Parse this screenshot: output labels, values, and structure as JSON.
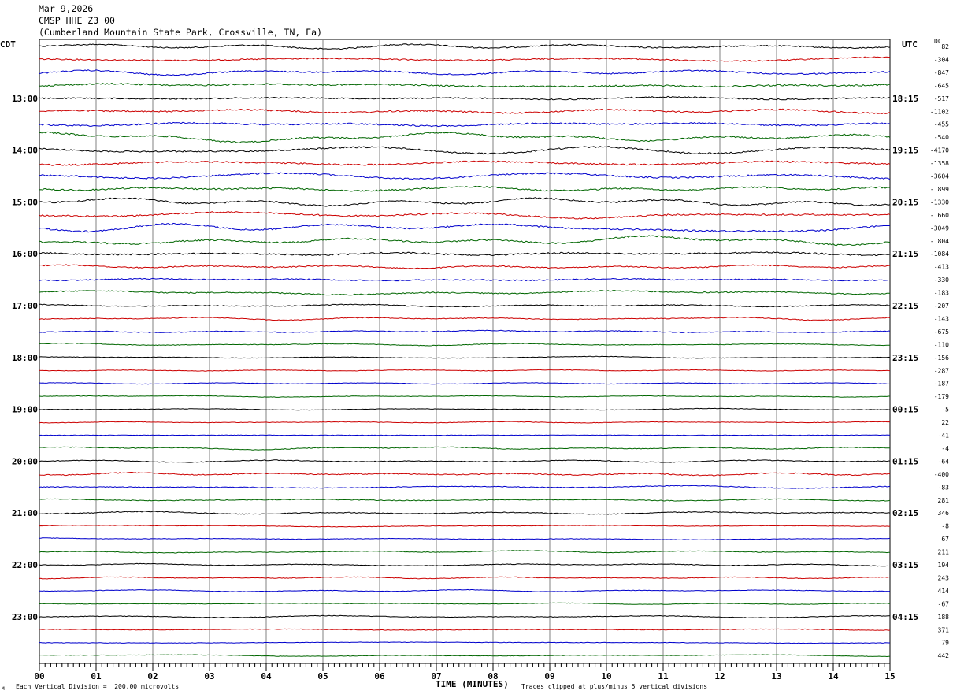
{
  "header": {
    "date": "Mar 9,2026",
    "station": "CMSP HHE Z3 00",
    "location": "(Cumberland Mountain State Park, Crossville, TN, Ea)"
  },
  "left_axis_label": "CDT",
  "right_axis_label": "UTC",
  "dc_label": "DC",
  "footer": {
    "scale_note": "Each Vertical Division =  200.00 microvolts",
    "clip_note": "Traces clipped at plus/minus 5 vertical divisions",
    "corner_mark": "M"
  },
  "colors": {
    "trace_cycle": [
      "#000000",
      "#cc0000",
      "#0000cc",
      "#006600"
    ],
    "grid": "#808080"
  },
  "chart_data": {
    "type": "line",
    "subtype": "helicorder",
    "xlabel": "TIME (MINUTES)",
    "x_ticks": [
      "00",
      "01",
      "02",
      "03",
      "04",
      "05",
      "06",
      "07",
      "08",
      "09",
      "10",
      "11",
      "12",
      "13",
      "14",
      "15"
    ],
    "xlim": [
      0,
      15
    ],
    "trace_minutes_per_line": 15,
    "left_hour_labels": [
      "13:00",
      "14:00",
      "15:00",
      "16:00",
      "17:00",
      "18:00",
      "19:00",
      "20:00",
      "21:00",
      "22:00",
      "23:00"
    ],
    "right_hour_labels": [
      "18:15",
      "19:15",
      "20:15",
      "21:15",
      "22:15",
      "23:15",
      "00:15",
      "01:15",
      "02:15",
      "03:15",
      "04:15"
    ],
    "hour_label_first_trace": 4,
    "hour_label_every": 4,
    "dc_offsets": [
      "82",
      "-304",
      "-847",
      "-645",
      "-517",
      "-1102",
      "-455",
      "-540",
      "-4170",
      "-1358",
      "-3604",
      "-1899",
      "-1330",
      "-1660",
      "-3049",
      "-1804",
      "-1084",
      "-413",
      "-330",
      "-183",
      "-207",
      "-143",
      "-675",
      "-110",
      "-156",
      "-287",
      "-187",
      "-179",
      "-5",
      "22",
      "-41",
      "-4",
      "-64",
      "-400",
      "-83",
      "281",
      "346",
      "-8",
      "67",
      "211",
      "194",
      "243",
      "414",
      "-67",
      "188",
      "371",
      "79",
      "442"
    ],
    "trace_activity": [
      1,
      1,
      1,
      1.3,
      1,
      1.2,
      1.5,
      1.6,
      2.5,
      2.2,
      2.5,
      2,
      2.2,
      2,
      1.8,
      1.8,
      1.2,
      0.9,
      0.9,
      0.9,
      0.7,
      0.6,
      0.6,
      0.5,
      0.4,
      0.4,
      0.4,
      0.4,
      0.4,
      0.4,
      0.4,
      0.6,
      0.6,
      0.8,
      0.6,
      0.6,
      0.7,
      0.4,
      0.4,
      0.5,
      0.5,
      0.5,
      0.4,
      0.4,
      0.5,
      0.5,
      0.4,
      0.4
    ]
  }
}
